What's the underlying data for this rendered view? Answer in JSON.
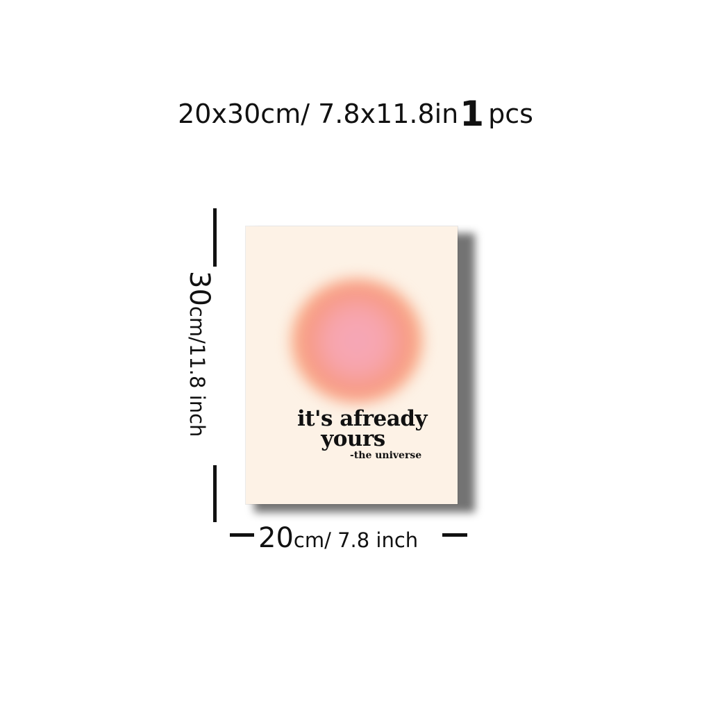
{
  "header": {
    "size_text": "20x30cm/ 7.8x11.8in",
    "quantity_number": "1",
    "quantity_unit": "pcs"
  },
  "poster": {
    "quote_line1": "it's afready",
    "quote_line2": "yours",
    "attribution": "-the universe",
    "background_color": "#fdf2e6",
    "aura_colors": [
      "#f6a7b8",
      "#f79a86",
      "#f9b28a"
    ]
  },
  "dimensions": {
    "height_value": "30",
    "height_unit": "cm/11.8 inch",
    "width_value": "20",
    "width_unit": "cm/ 7.8 inch"
  }
}
